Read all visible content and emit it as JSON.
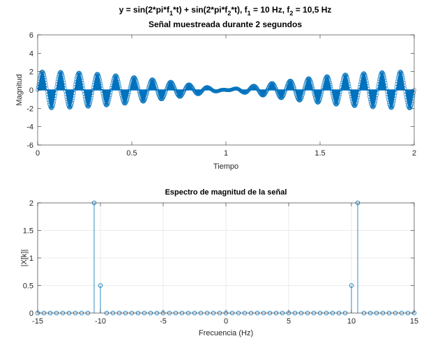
{
  "chart_data": [
    {
      "type": "stem",
      "title_parts": [
        {
          "text": "y = sin(2*pi*f",
          "sub": false
        },
        {
          "text": "1",
          "sub": true
        },
        {
          "text": "*t) + sin(2*pi*f",
          "sub": false
        },
        {
          "text": "2",
          "sub": true
        },
        {
          "text": "*t), f",
          "sub": false
        },
        {
          "text": "1",
          "sub": true
        },
        {
          "text": " = 10 Hz, f",
          "sub": false
        },
        {
          "text": "2",
          "sub": true
        },
        {
          "text": " = 10,5 Hz",
          "sub": false
        }
      ],
      "subtitle": "Señal muestreada durante 2 segundos",
      "xlabel": "Tiempo",
      "ylabel": "Magnitud",
      "xlim": [
        0,
        2
      ],
      "ylim": [
        -6,
        6
      ],
      "xticks": [
        0,
        0.5,
        1,
        1.5,
        2
      ],
      "xtick_labels": [
        "0",
        "0.5",
        "1",
        "1.5",
        "2"
      ],
      "yticks": [
        -6,
        -4,
        -2,
        0,
        2,
        4,
        6
      ],
      "ytick_labels": [
        "-6",
        "-4",
        "-2",
        "0",
        "2",
        "4",
        "6"
      ],
      "grid": false,
      "signal": {
        "f1": 10,
        "f2": 10.5,
        "duration": 2
      },
      "color": "#0072BD"
    },
    {
      "type": "stem",
      "title": "Espectro de magnitud de la señal",
      "xlabel": "Frecuencia (Hz)",
      "ylabel": "|X[k]|",
      "xlim": [
        -15,
        15
      ],
      "ylim": [
        0,
        2
      ],
      "xticks": [
        -15,
        -10,
        -5,
        0,
        5,
        10,
        15
      ],
      "xtick_labels": [
        "-15",
        "-10",
        "-5",
        "0",
        "5",
        "10",
        "15"
      ],
      "yticks": [
        0,
        0.5,
        1,
        1.5,
        2
      ],
      "ytick_labels": [
        "0",
        "0.5",
        "1",
        "1.5",
        "2"
      ],
      "grid": true,
      "x": [
        -15,
        -14.5,
        -14,
        -13.5,
        -13,
        -12.5,
        -12,
        -11.5,
        -11,
        -10.5,
        -10,
        -9.5,
        -9,
        -8.5,
        -8,
        -7.5,
        -7,
        -6.5,
        -6,
        -5.5,
        -5,
        -4.5,
        -4,
        -3.5,
        -3,
        -2.5,
        -2,
        -1.5,
        -1,
        -0.5,
        0,
        0.5,
        1,
        1.5,
        2,
        2.5,
        3,
        3.5,
        4,
        4.5,
        5,
        5.5,
        6,
        6.5,
        7,
        7.5,
        8,
        8.5,
        9,
        9.5,
        10,
        10.5,
        11,
        11.5,
        12,
        12.5,
        13,
        13.5,
        14,
        14.5,
        15
      ],
      "values": [
        0,
        0,
        0,
        0,
        0,
        0,
        0,
        0,
        0,
        2,
        0.5,
        0,
        0,
        0,
        0,
        0,
        0,
        0,
        0,
        0,
        0,
        0,
        0,
        0,
        0,
        0,
        0,
        0,
        0,
        0,
        0,
        0,
        0,
        0,
        0,
        0,
        0,
        0,
        0,
        0,
        0,
        0,
        0,
        0,
        0,
        0,
        0,
        0,
        0,
        0,
        0.5,
        2,
        0,
        0,
        0,
        0,
        0,
        0,
        0,
        0,
        0
      ],
      "color": "#0072BD"
    }
  ]
}
